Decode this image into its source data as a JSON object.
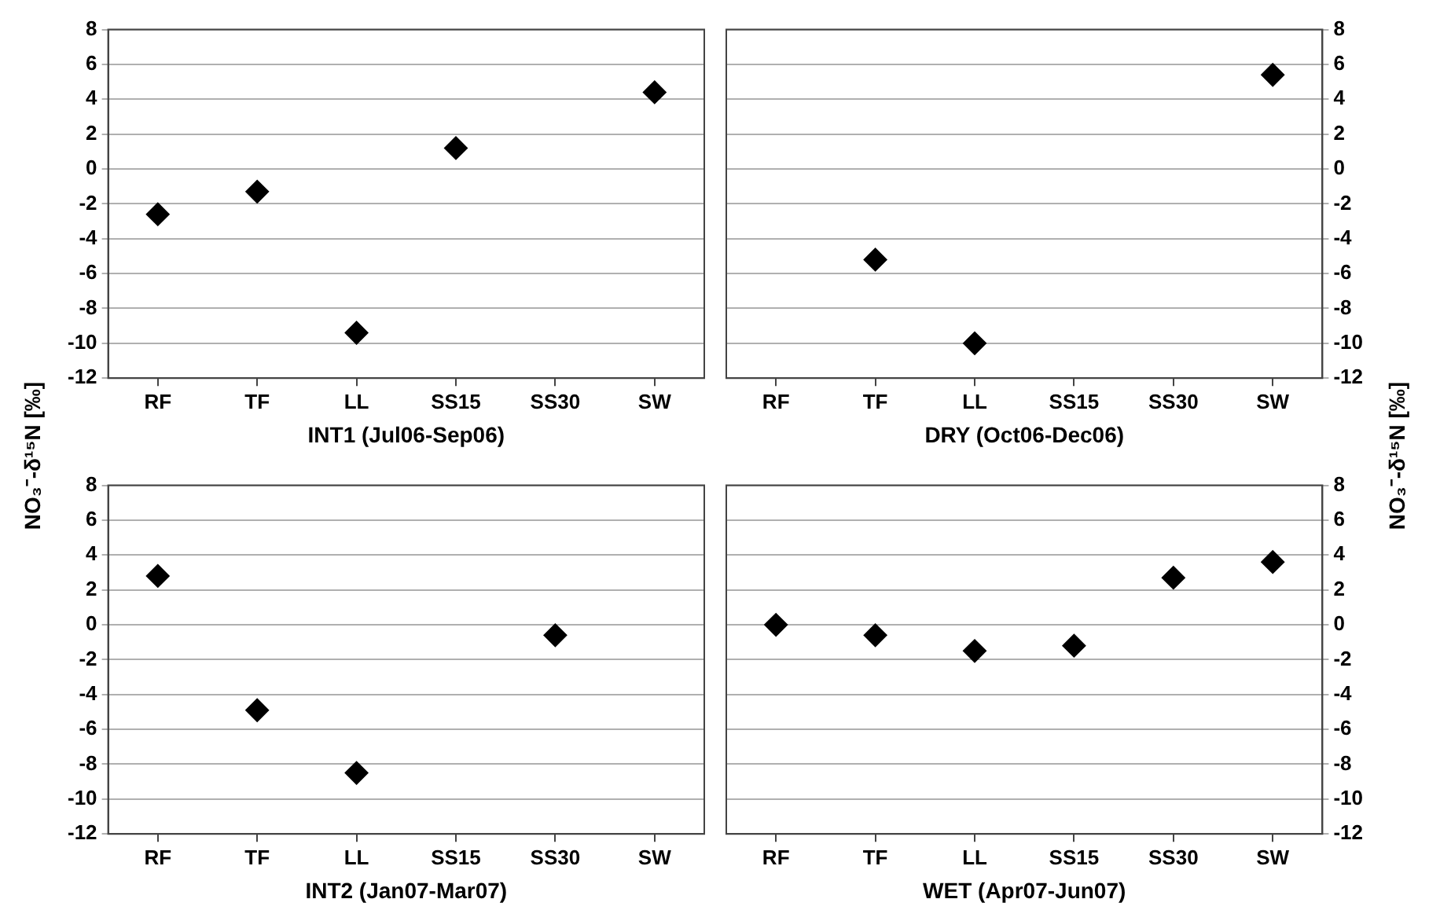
{
  "chart_data": [
    {
      "type": "scatter",
      "xlabel": "INT1 (Jul06-Sep06)",
      "ylabel": "NO₃⁻-δ¹⁵N [‰]",
      "categories": [
        "RF",
        "TF",
        "LL",
        "SS15",
        "SS30",
        "SW"
      ],
      "values": [
        -2.6,
        -1.3,
        -9.4,
        1.2,
        null,
        4.4
      ],
      "color": "#000000",
      "marker": "diamond",
      "ylim": [
        -12,
        8
      ],
      "yticks": [
        -12,
        -10,
        -8,
        -6,
        -4,
        -2,
        0,
        2,
        4,
        6,
        8
      ],
      "grid": "y"
    },
    {
      "type": "scatter",
      "xlabel": "DRY (Oct06-Dec06)",
      "ylabel": "NO₃⁻-δ¹⁵N [‰]",
      "categories": [
        "RF",
        "TF",
        "LL",
        "SS15",
        "SS30",
        "SW"
      ],
      "values": [
        null,
        -5.2,
        -10.0,
        null,
        null,
        5.4
      ],
      "color": "#000000",
      "marker": "diamond",
      "ylim": [
        -12,
        8
      ],
      "yticks": [
        -12,
        -10,
        -8,
        -6,
        -4,
        -2,
        0,
        2,
        4,
        6,
        8
      ],
      "grid": "y"
    },
    {
      "type": "scatter",
      "xlabel": "INT2 (Jan07-Mar07)",
      "categories": [
        "RF",
        "TF",
        "LL",
        "SS15",
        "SS30",
        "SW"
      ],
      "values": [
        2.8,
        -4.9,
        -8.5,
        null,
        -0.6,
        null
      ],
      "color": "#000000",
      "marker": "diamond",
      "ylim": [
        -12,
        8
      ],
      "yticks": [
        -12,
        -10,
        -8,
        -6,
        -4,
        -2,
        0,
        2,
        4,
        6,
        8
      ],
      "grid": "y"
    },
    {
      "type": "scatter",
      "xlabel": "WET (Apr07-Jun07)",
      "categories": [
        "RF",
        "TF",
        "LL",
        "SS15",
        "SS30",
        "SW"
      ],
      "values": [
        0.0,
        -0.6,
        -1.5,
        -1.2,
        2.7,
        3.6
      ],
      "color": "#000000",
      "marker": "diamond",
      "ylim": [
        -12,
        8
      ],
      "yticks": [
        -12,
        -10,
        -8,
        -6,
        -4,
        -2,
        0,
        2,
        4,
        6,
        8
      ],
      "grid": "y"
    }
  ]
}
